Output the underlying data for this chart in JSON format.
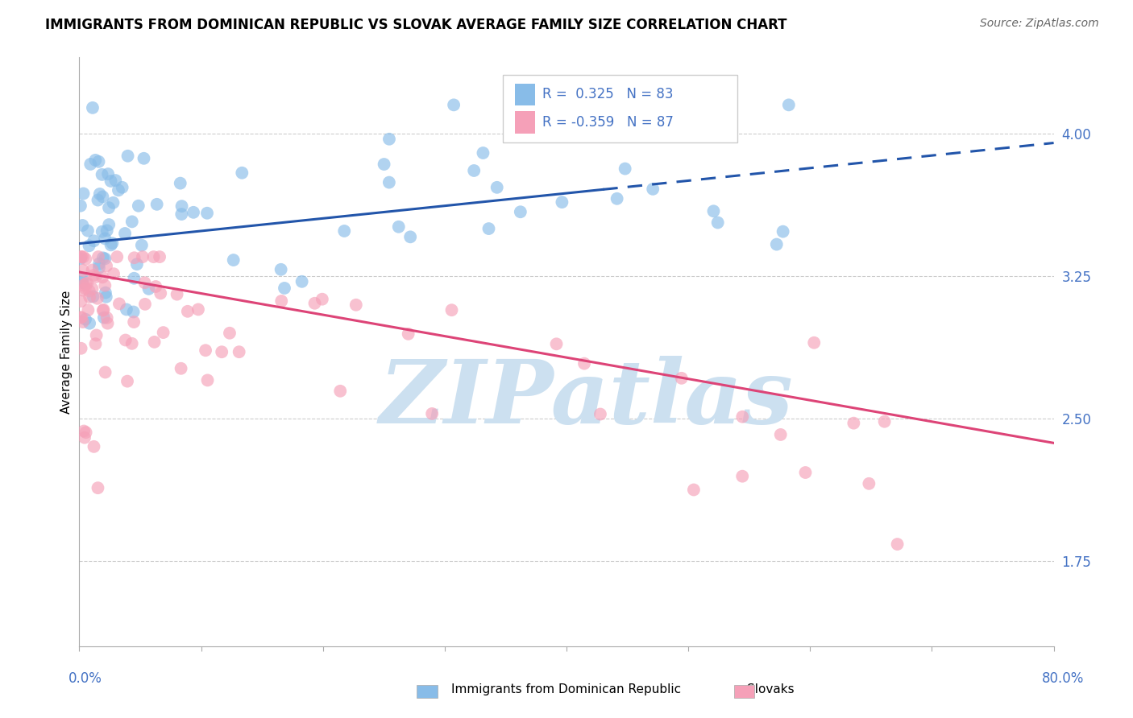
{
  "title": "IMMIGRANTS FROM DOMINICAN REPUBLIC VS SLOVAK AVERAGE FAMILY SIZE CORRELATION CHART",
  "source": "Source: ZipAtlas.com",
  "ylabel": "Average Family Size",
  "yticks_right": [
    1.75,
    2.5,
    3.25,
    4.0
  ],
  "xlim": [
    0.0,
    80.0
  ],
  "ylim": [
    1.3,
    4.4
  ],
  "blue_color": "#88bce8",
  "pink_color": "#f5a0b8",
  "blue_line_color": "#2255aa",
  "pink_line_color": "#dd4477",
  "axis_color": "#4472c4",
  "grid_color": "#cccccc",
  "background_color": "#ffffff",
  "legend_R_blue_val": "0.325",
  "legend_N_blue": "N = 83",
  "legend_R_pink_val": "-0.359",
  "legend_N_pink": "N = 87",
  "blue_line_x_start": 0.0,
  "blue_line_x_end": 80.0,
  "blue_line_y_start": 3.42,
  "blue_line_y_end": 3.95,
  "blue_solid_x_end": 43.0,
  "pink_line_x_start": 0.0,
  "pink_line_x_end": 80.0,
  "pink_line_y_start": 3.27,
  "pink_line_y_end": 2.37,
  "watermark_text": "ZIPatlas",
  "watermark_color": "#cce0f0",
  "title_fontsize": 12,
  "source_fontsize": 10,
  "scatter_size": 130,
  "scatter_alpha": 0.65
}
